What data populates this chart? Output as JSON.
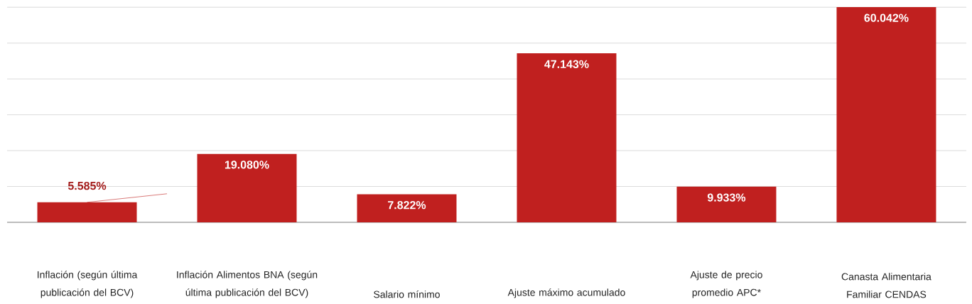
{
  "chart_data": {
    "type": "bar",
    "categories": [
      "Inflación (según última publicación del BCV)",
      "Inflación Alimentos BNA (según última publicación del BCV)",
      "Salario mínimo",
      "Ajuste máximo acumulado",
      "Ajuste de precio promedio APC*",
      "Canasta Alimentaria Familiar CENDAS"
    ],
    "values": [
      5.585,
      19.08,
      7.822,
      47.143,
      9.933,
      60.042
    ],
    "value_labels": [
      "5.585%",
      "19.080%",
      "7.822%",
      "47.143%",
      "9.933%",
      "60.042%"
    ],
    "color": "#c0201f",
    "grid": "y",
    "tick_labels": "x"
  }
}
